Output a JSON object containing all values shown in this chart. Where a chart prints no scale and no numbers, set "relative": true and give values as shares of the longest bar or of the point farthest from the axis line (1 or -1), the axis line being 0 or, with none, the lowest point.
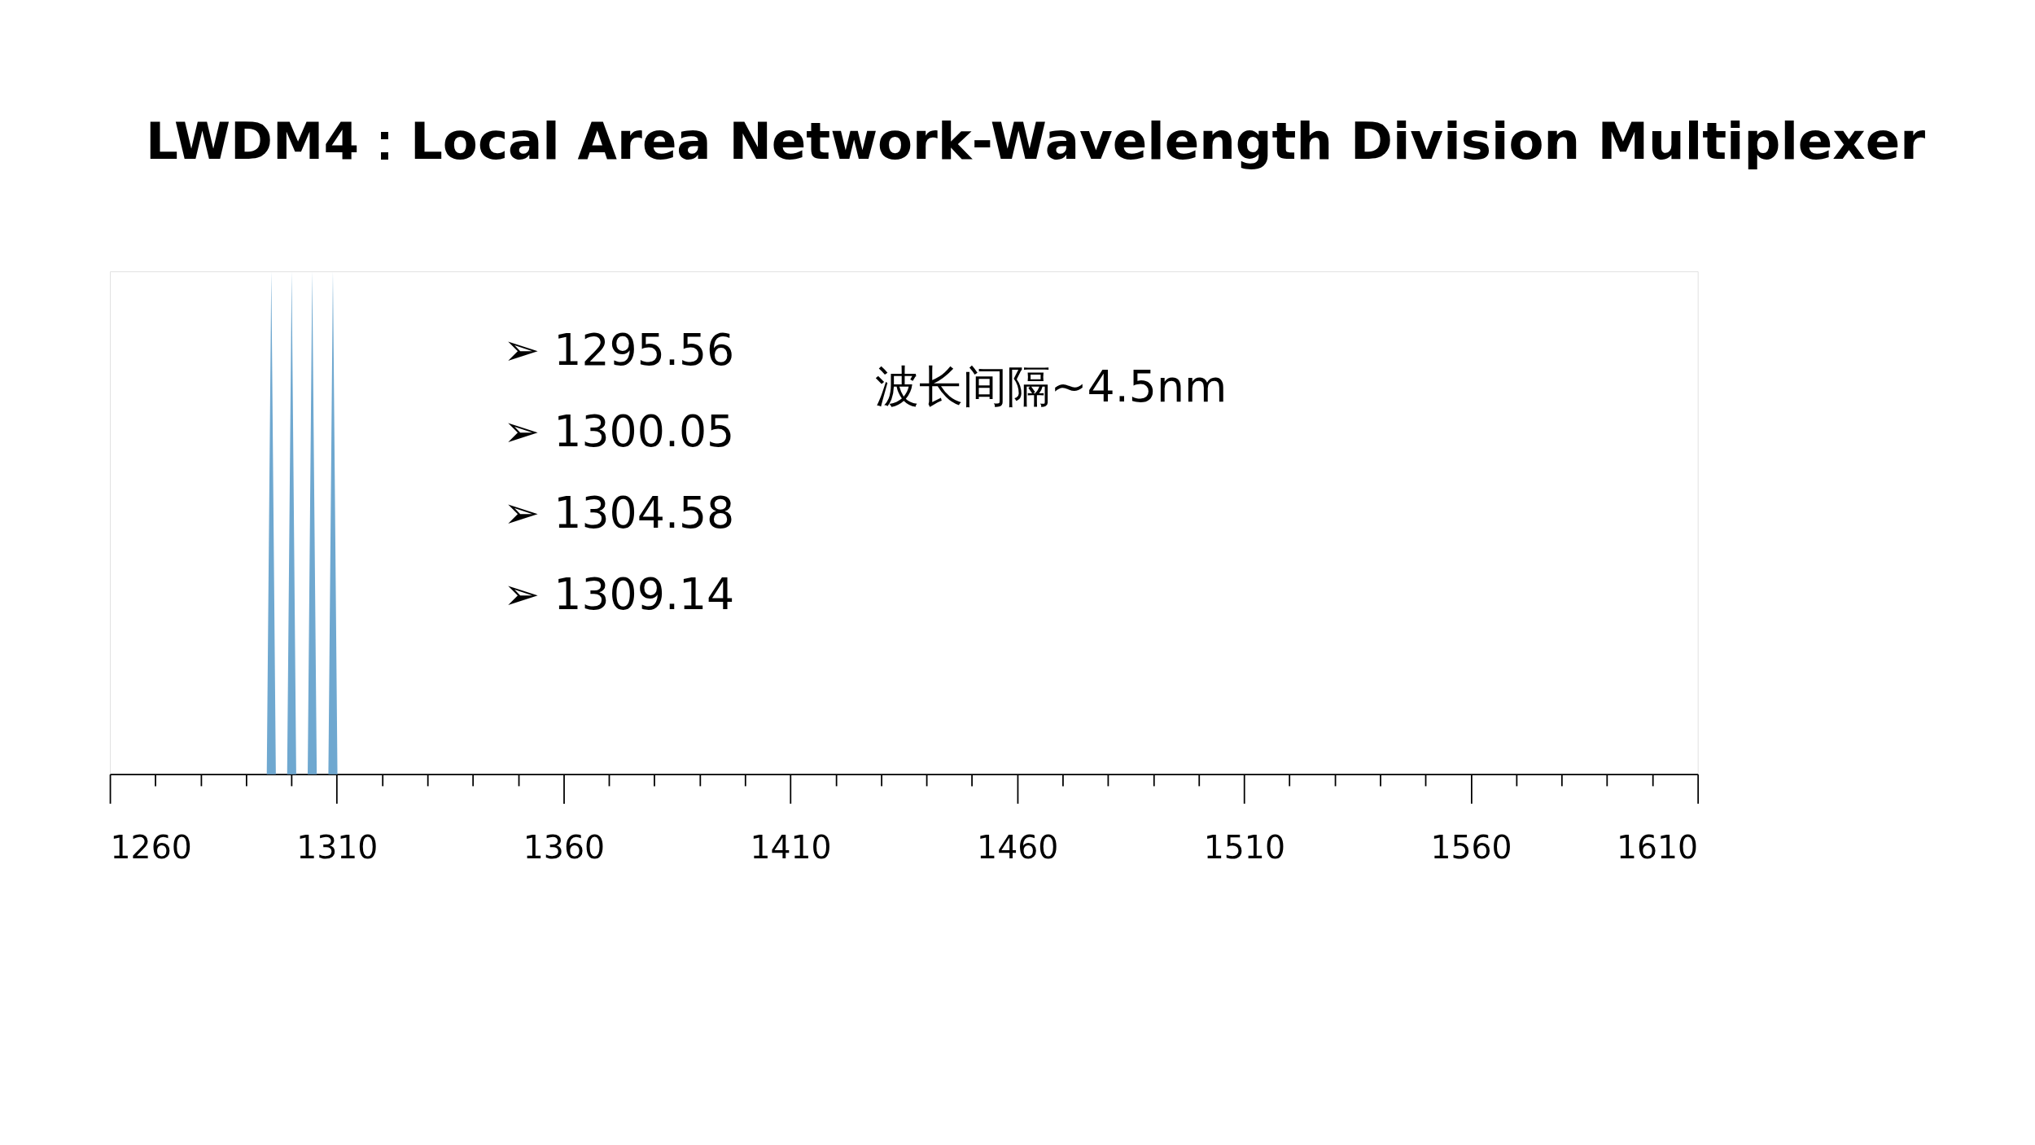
{
  "chart_data": {
    "type": "area",
    "title": "LWDM4：Local Area Network-Wavelength Division Multiplexer",
    "relative": true,
    "x": [
      1294.56,
      1295.56,
      1296.56,
      1299.05,
      1300.05,
      1301.05,
      1303.58,
      1304.58,
      1305.58,
      1308.14,
      1309.14,
      1310.14
    ],
    "series": [
      {
        "color": "#6fa8d0",
        "values": [
          0,
          1,
          0,
          0,
          1,
          0,
          0,
          1,
          0,
          0,
          1,
          0
        ]
      }
    ],
    "xlim": [
      1260,
      1610
    ],
    "xticks": [
      1260,
      {
        "value": 1270,
        "label": null
      },
      {
        "value": 1280,
        "label": null
      },
      {
        "value": 1290,
        "label": null
      },
      {
        "value": 1300,
        "label": null
      },
      1310,
      {
        "value": 1320,
        "label": null
      },
      {
        "value": 1330,
        "label": null
      },
      {
        "value": 1340,
        "label": null
      },
      {
        "value": 1350,
        "label": null
      },
      1360,
      {
        "value": 1370,
        "label": null
      },
      {
        "value": 1380,
        "label": null
      },
      {
        "value": 1390,
        "label": null
      },
      {
        "value": 1400,
        "label": null
      },
      1410,
      {
        "value": 1420,
        "label": null
      },
      {
        "value": 1430,
        "label": null
      },
      {
        "value": 1440,
        "label": null
      },
      {
        "value": 1450,
        "label": null
      },
      1460,
      {
        "value": 1470,
        "label": null
      },
      {
        "value": 1480,
        "label": null
      },
      {
        "value": 1490,
        "label": null
      },
      {
        "value": 1500,
        "label": null
      },
      1510,
      {
        "value": 1520,
        "label": null
      },
      {
        "value": 1530,
        "label": null
      },
      {
        "value": 1540,
        "label": null
      },
      {
        "value": 1550,
        "label": null
      },
      1560,
      {
        "value": 1570,
        "label": null
      },
      {
        "value": 1580,
        "label": null
      },
      {
        "value": 1590,
        "label": null
      },
      {
        "value": 1600,
        "label": null
      },
      1610
    ],
    "grid": false,
    "annotations": [
      "➢ 1295.56",
      "➢ 1300.05",
      "➢ 1304.58",
      "➢ 1309.14",
      "波长间隔~4.5nm"
    ]
  }
}
